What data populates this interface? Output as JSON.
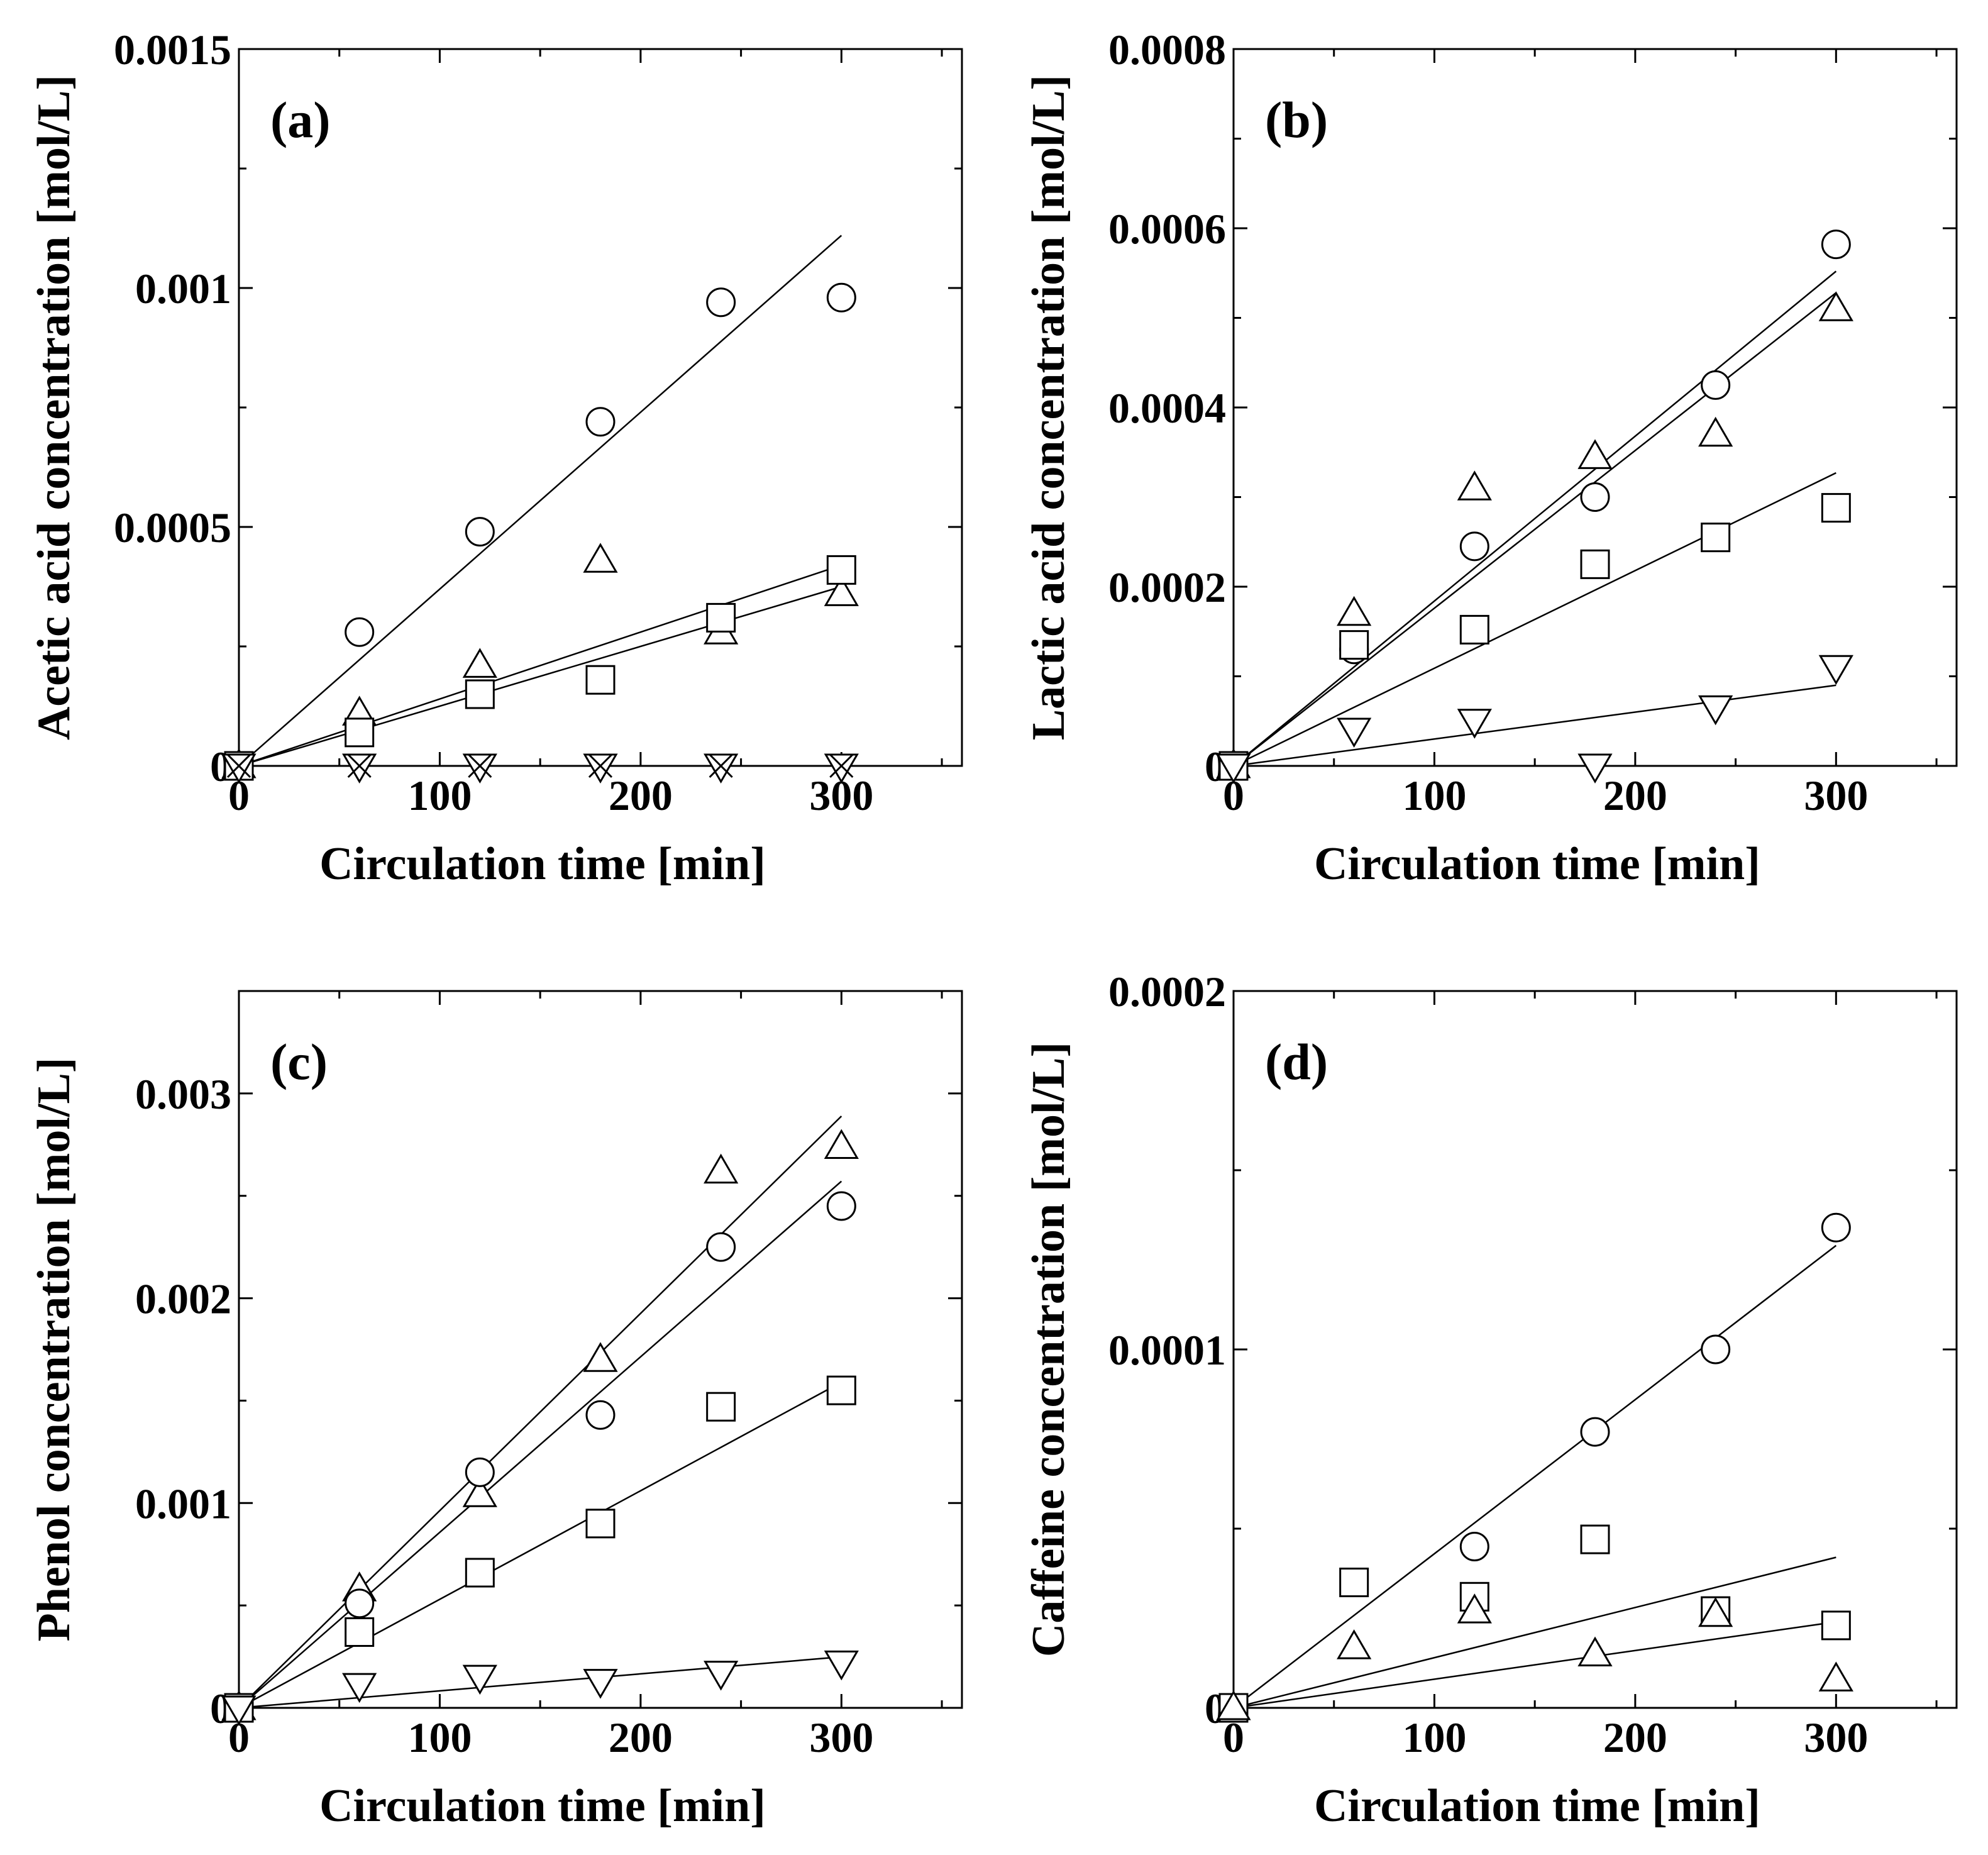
{
  "chart_data": [
    {
      "type": "scatter",
      "panel_label": "(a)",
      "xlabel": "Circulation time [min]",
      "ylabel": "Acetic acid concentration [mol/L]",
      "xlim": [
        0,
        360
      ],
      "ylim": [
        0,
        0.0015
      ],
      "x_ticks": [
        0,
        100,
        200,
        300
      ],
      "x_tick_labels": [
        "0",
        "100",
        "200",
        "300"
      ],
      "y_ticks": [
        0,
        0.0005,
        0.001,
        0.0015
      ],
      "y_tick_labels": [
        "0",
        "0.0005",
        "0.001",
        "0.0015"
      ],
      "series": [
        {
          "name": "circle",
          "marker": "circle",
          "x": [
            0,
            60,
            120,
            180,
            240,
            300
          ],
          "y": [
            0,
            0.00028,
            0.00049,
            0.00072,
            0.00097,
            0.00098
          ],
          "fit_slope": 3.7e-06
        },
        {
          "name": "triangle",
          "marker": "triangle-up",
          "x": [
            0,
            60,
            120,
            180,
            240,
            300
          ],
          "y": [
            0,
            0.00011,
            0.00021,
            0.00043,
            0.00028,
            0.00036
          ],
          "fit_slope": 1.25e-06
        },
        {
          "name": "square",
          "marker": "square",
          "x": [
            0,
            60,
            120,
            180,
            240,
            300
          ],
          "y": [
            0,
            7e-05,
            0.00015,
            0.00018,
            0.00031,
            0.00041
          ],
          "fit_slope": 1.4e-06
        },
        {
          "name": "triangle-down",
          "marker": "triangle-down",
          "x": [
            0,
            60,
            120,
            180,
            240,
            300
          ],
          "y": [
            0,
            0,
            0,
            0,
            0,
            0
          ]
        },
        {
          "name": "cross",
          "marker": "cross",
          "x": [
            0,
            60,
            120,
            180,
            240,
            300
          ],
          "y": [
            0,
            0,
            0,
            0,
            0,
            0
          ]
        }
      ]
    },
    {
      "type": "scatter",
      "panel_label": "(b)",
      "xlabel": "Circulation time [min]",
      "ylabel": "Lactic acid concentration [mol/L]",
      "xlim": [
        0,
        360
      ],
      "ylim": [
        0,
        0.0008
      ],
      "x_ticks": [
        0,
        100,
        200,
        300
      ],
      "x_tick_labels": [
        "0",
        "100",
        "200",
        "300"
      ],
      "y_ticks": [
        0,
        0.0002,
        0.0004,
        0.0006,
        0.0008
      ],
      "y_tick_labels": [
        "0",
        "0.0002",
        "0.0004",
        "0.0006",
        "0.0008"
      ],
      "series": [
        {
          "name": "circle",
          "marker": "circle",
          "x": [
            0,
            60,
            120,
            180,
            240,
            300
          ],
          "y": [
            0,
            0.00013,
            0.000245,
            0.0003,
            0.000425,
            0.000582
          ],
          "fit_slope": 1.84e-06
        },
        {
          "name": "triangle",
          "marker": "triangle-up",
          "x": [
            0,
            60,
            120,
            180,
            240,
            300
          ],
          "y": [
            0,
            0.00017,
            0.00031,
            0.000345,
            0.00037,
            0.00051
          ],
          "fit_slope": 1.76e-06
        },
        {
          "name": "square",
          "marker": "square",
          "x": [
            0,
            60,
            120,
            180,
            240,
            300
          ],
          "y": [
            0,
            0.000135,
            0.000152,
            0.000225,
            0.000255,
            0.000288
          ],
          "fit_slope": 1.09e-06
        },
        {
          "name": "triangle-down",
          "marker": "triangle-down",
          "x": [
            0,
            60,
            120,
            180,
            240,
            300
          ],
          "y": [
            0,
            4e-05,
            5e-05,
            0,
            6.5e-05,
            0.00011
          ],
          "fit_slope": 3e-07
        }
      ]
    },
    {
      "type": "scatter",
      "panel_label": "(c)",
      "xlabel": "Circulation time [min]",
      "ylabel": "Phenol concentration [mol/L]",
      "xlim": [
        0,
        360
      ],
      "ylim": [
        0,
        0.0035
      ],
      "x_ticks": [
        0,
        100,
        200,
        300
      ],
      "x_tick_labels": [
        "0",
        "100",
        "200",
        "300"
      ],
      "y_ticks": [
        0,
        0.001,
        0.002,
        0.003
      ],
      "y_tick_labels": [
        "0",
        "0.001",
        "0.002",
        "0.003"
      ],
      "series": [
        {
          "name": "triangle",
          "marker": "triangle-up",
          "x": [
            0,
            60,
            120,
            180,
            240,
            300
          ],
          "y": [
            0,
            0.00058,
            0.00104,
            0.0017,
            0.00262,
            0.00274
          ],
          "fit_slope": 9.63e-06
        },
        {
          "name": "circle",
          "marker": "circle",
          "x": [
            0,
            60,
            120,
            180,
            240,
            300
          ],
          "y": [
            0,
            0.00051,
            0.00115,
            0.00143,
            0.00225,
            0.00245
          ],
          "fit_slope": 8.57e-06
        },
        {
          "name": "square",
          "marker": "square",
          "x": [
            0,
            60,
            120,
            180,
            240,
            300
          ],
          "y": [
            0,
            0.00037,
            0.00066,
            0.0009,
            0.00147,
            0.00155
          ],
          "fit_slope": 5.3e-06
        },
        {
          "name": "triangle-down",
          "marker": "triangle-down",
          "x": [
            0,
            60,
            120,
            180,
            240,
            300
          ],
          "y": [
            0,
            0.00011,
            0.00015,
            0.00013,
            0.00017,
            0.00022
          ],
          "fit_slope": 8.3e-07
        }
      ]
    },
    {
      "type": "scatter",
      "panel_label": "(d)",
      "xlabel": "Circulation time [min]",
      "ylabel": "Caffeine concentration [mol/L]",
      "xlim": [
        0,
        360
      ],
      "ylim": [
        0,
        0.0002
      ],
      "x_ticks": [
        0,
        100,
        200,
        300
      ],
      "x_tick_labels": [
        "0",
        "100",
        "200",
        "300"
      ],
      "y_ticks": [
        0,
        0.0001,
        0.0002
      ],
      "y_tick_labels": [
        "0",
        "0.0001",
        "0.0002"
      ],
      "series": [
        {
          "name": "circle",
          "marker": "circle",
          "x": [
            0,
            120,
            180,
            240,
            300
          ],
          "y": [
            0,
            4.5e-05,
            7.7e-05,
            0.0001,
            0.000134
          ],
          "fit_slope": 4.3e-07
        },
        {
          "name": "square",
          "marker": "square",
          "x": [
            0,
            60,
            120,
            180,
            240,
            300
          ],
          "y": [
            0,
            3.5e-05,
            3.1e-05,
            4.7e-05,
            2.7e-05,
            2.3e-05
          ],
          "fit_slope": 1.4e-07
        },
        {
          "name": "triangle",
          "marker": "triangle-up",
          "x": [
            0,
            60,
            120,
            180,
            240,
            300
          ],
          "y": [
            0,
            1.7e-05,
            2.7e-05,
            1.5e-05,
            2.6e-05,
            8e-06
          ],
          "fit_slope": 8e-08
        }
      ]
    }
  ]
}
